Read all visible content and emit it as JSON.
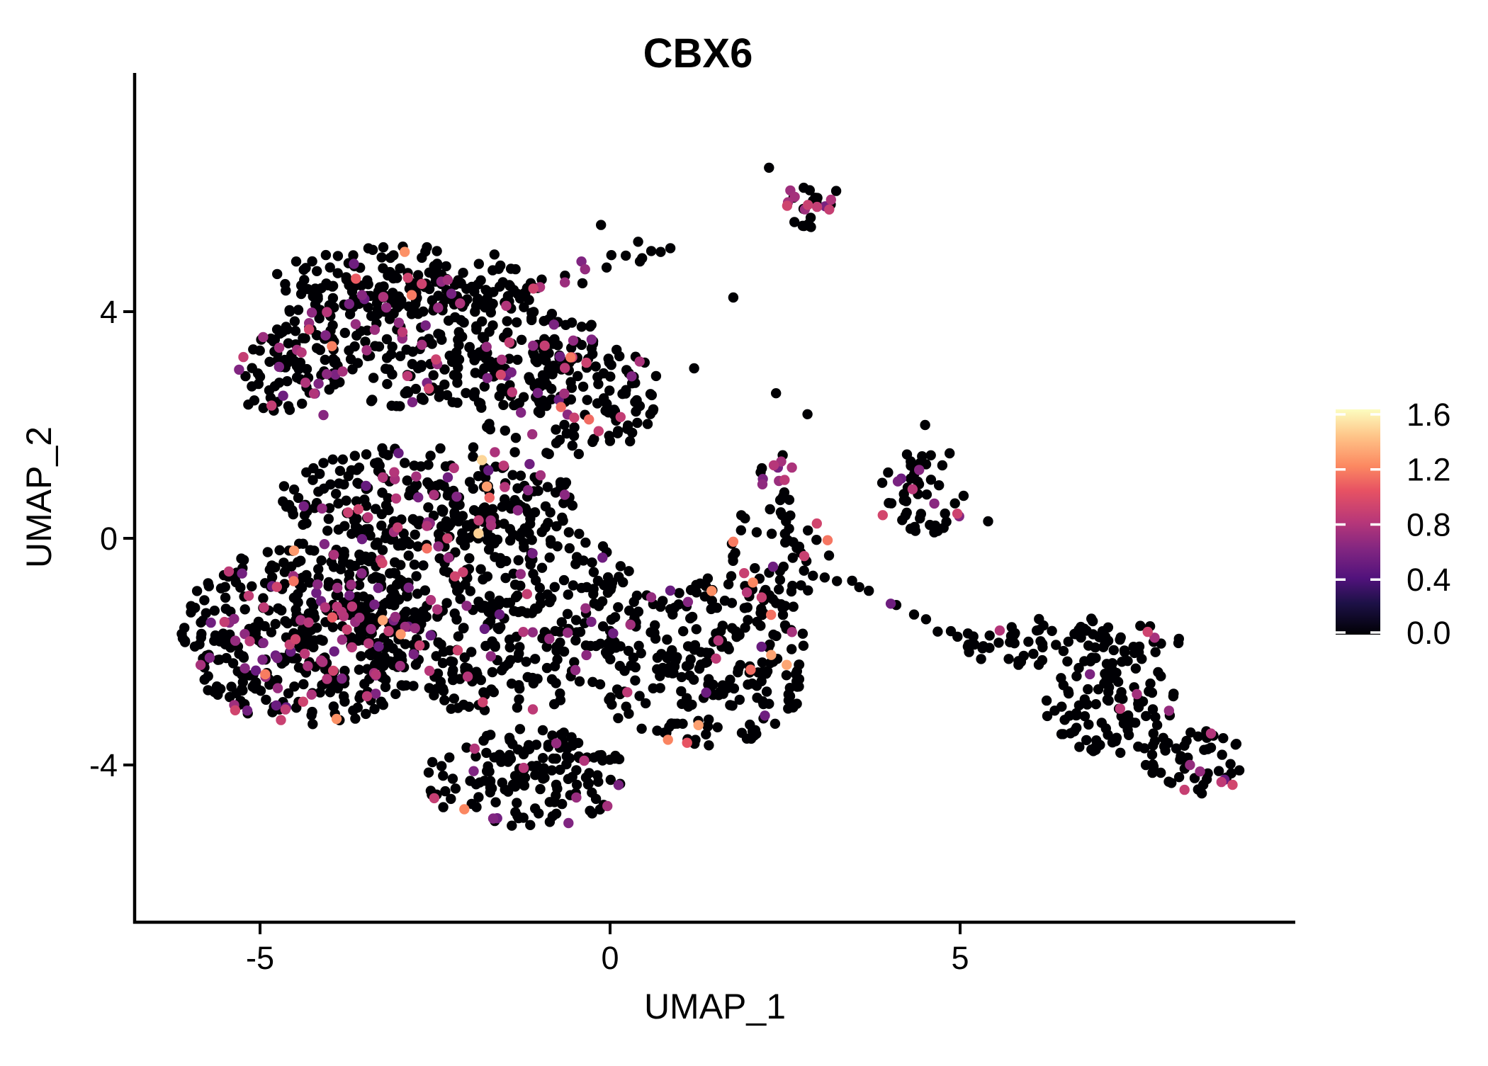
{
  "page": {
    "background": "#ffffff"
  },
  "chart_data": {
    "type": "scatter",
    "title": "CBX6",
    "xlabel": "UMAP_1",
    "ylabel": "UMAP_2",
    "x_ticks": [
      {
        "value": -5,
        "label": "-5"
      },
      {
        "value": 0,
        "label": "0"
      },
      {
        "value": 5,
        "label": "5"
      }
    ],
    "y_ticks": [
      {
        "value": 4,
        "label": "4"
      },
      {
        "value": 0,
        "label": "0"
      },
      {
        "value": -4,
        "label": "-4"
      }
    ],
    "xlim": [
      -6.8,
      9.8
    ],
    "ylim": [
      -6.85,
      8.2
    ],
    "grid": false,
    "point_radius_px": 7.2,
    "seed": 7,
    "legend": {
      "position": "right",
      "vmin": 0.0,
      "vmax": 1.636,
      "tick_values": [
        0.0,
        0.4,
        0.8,
        1.2,
        1.6
      ],
      "tick_labels": [
        "0.0",
        "0.4",
        "0.8",
        "1.2",
        "1.6"
      ]
    },
    "colormap": {
      "name": "magma",
      "stops": [
        [
          0.0,
          "#000004"
        ],
        [
          0.14,
          "#1d1147"
        ],
        [
          0.25,
          "#51127c"
        ],
        [
          0.38,
          "#822681"
        ],
        [
          0.5,
          "#b73779"
        ],
        [
          0.64,
          "#e75263"
        ],
        [
          0.75,
          "#fc8961"
        ],
        [
          0.88,
          "#fec488"
        ],
        [
          1.0,
          "#fcfdbf"
        ]
      ]
    },
    "clusters": [
      {
        "name": "north-lobe-top",
        "cx": -2.9,
        "cy": 4.55,
        "rx": 1.95,
        "ry": 0.6,
        "n": 150,
        "p_mid": 0.1,
        "p_high": 0.01,
        "p_peak": 0
      },
      {
        "name": "north-lobe-core",
        "cx": -2.55,
        "cy": 3.5,
        "rx": 2.35,
        "ry": 1.2,
        "n": 310,
        "p_mid": 0.11,
        "p_high": 0.012,
        "p_peak": 0
      },
      {
        "name": "north-lobe-left-arm",
        "cx": -4.55,
        "cy": 2.9,
        "rx": 0.8,
        "ry": 0.9,
        "n": 60,
        "p_mid": 0.2,
        "p_high": 0.01,
        "p_peak": 0
      },
      {
        "name": "north-lobe-southeast",
        "cx": -0.6,
        "cy": 2.5,
        "rx": 1.35,
        "ry": 1.05,
        "n": 150,
        "p_mid": 0.09,
        "p_high": 0.01,
        "p_peak": 0
      },
      {
        "name": "top-small-cluster",
        "cx": 2.82,
        "cy": 5.9,
        "rx": 0.35,
        "ry": 0.44,
        "n": 26,
        "p_mid": 0.3,
        "p_high": 0,
        "p_peak": 0
      },
      {
        "name": "mid-band",
        "cx": -2.6,
        "cy": 0.75,
        "rx": 2.15,
        "ry": 0.95,
        "n": 235,
        "p_mid": 0.13,
        "p_high": 0.008,
        "p_peak": 0
      },
      {
        "name": "west-dense",
        "cx": -4.35,
        "cy": -1.7,
        "rx": 1.8,
        "ry": 1.62,
        "n": 440,
        "p_mid": 0.17,
        "p_high": 0.012,
        "p_peak": 0
      },
      {
        "name": "central",
        "cx": -1.7,
        "cy": -1.25,
        "rx": 2.15,
        "ry": 1.85,
        "n": 420,
        "p_mid": 0.09,
        "p_high": 0.008,
        "p_peak": 0.002
      },
      {
        "name": "south-tip",
        "cx": -1.2,
        "cy": -4.25,
        "rx": 1.45,
        "ry": 0.9,
        "n": 160,
        "p_mid": 0.07,
        "p_high": 0.006,
        "p_peak": 0
      },
      {
        "name": "southeast-blob",
        "cx": 1.3,
        "cy": -2.2,
        "rx": 1.6,
        "ry": 1.5,
        "n": 250,
        "p_mid": 0.07,
        "p_high": 0.02,
        "p_peak": 0
      },
      {
        "name": "east-spur",
        "cx": 2.4,
        "cy": -0.3,
        "rx": 0.8,
        "ry": 0.95,
        "n": 55,
        "p_mid": 0.06,
        "p_high": 0.03,
        "p_peak": 0
      },
      {
        "name": "small-purple-cluster",
        "cx": 2.42,
        "cy": 1.05,
        "rx": 0.3,
        "ry": 0.45,
        "n": 16,
        "p_mid": 0.38,
        "p_high": 0,
        "p_peak": 0
      },
      {
        "name": "right-mid-cluster",
        "cx": 4.45,
        "cy": 0.75,
        "rx": 0.65,
        "ry": 0.78,
        "n": 50,
        "p_mid": 0.17,
        "p_high": 0,
        "p_peak": 0
      },
      {
        "name": "right-band-top",
        "cx": 6.55,
        "cy": -1.85,
        "rx": 1.6,
        "ry": 0.45,
        "n": 88,
        "p_mid": 0.05,
        "p_high": 0,
        "p_peak": 0
      },
      {
        "name": "right-band-mid",
        "cx": 7.2,
        "cy": -3.0,
        "rx": 0.98,
        "ry": 0.88,
        "n": 92,
        "p_mid": 0.05,
        "p_high": 0,
        "p_peak": 0
      },
      {
        "name": "right-band-tail",
        "cx": 8.35,
        "cy": -3.95,
        "rx": 0.75,
        "ry": 0.58,
        "n": 52,
        "p_mid": 0.08,
        "p_high": 0,
        "p_peak": 0
      }
    ],
    "chains": [
      {
        "name": "northeast-chain",
        "x1": -1.1,
        "y1": 4.4,
        "x2": 1.0,
        "y2": 5.28,
        "n": 16,
        "jitter": 0.18,
        "p_mid": 0.25
      },
      {
        "name": "bridge-to-right",
        "x1": 2.95,
        "y1": -0.55,
        "x2": 5.3,
        "y2": -1.95,
        "n": 13,
        "jitter": 0.15,
        "p_mid": 0.1
      }
    ],
    "singles": [
      {
        "x": -1.83,
        "y": 1.38,
        "value": 1.5
      },
      {
        "x": 1.76,
        "y": -0.06,
        "value": 1.18
      },
      {
        "x": 2.04,
        "y": -0.78,
        "value": 1.22
      },
      {
        "x": 2.3,
        "y": -1.35,
        "value": 1.15
      },
      {
        "x": 1.2,
        "y": 3.0,
        "value": 0
      },
      {
        "x": 1.76,
        "y": 4.25,
        "value": 0
      },
      {
        "x": 2.37,
        "y": 2.56,
        "value": 0
      },
      {
        "x": 2.82,
        "y": 2.19,
        "value": 0
      },
      {
        "x": 4.5,
        "y": 2.0,
        "value": 0
      },
      {
        "x": 4.85,
        "y": 1.5,
        "value": 0
      },
      {
        "x": 5.05,
        "y": 0.75,
        "value": 0
      },
      {
        "x": 5.4,
        "y": 0.3,
        "value": 0
      },
      {
        "x": 2.27,
        "y": 6.54,
        "value": 0
      },
      {
        "x": 3.23,
        "y": 6.13,
        "value": 0
      },
      {
        "x": -0.13,
        "y": 5.53,
        "value": 0
      }
    ],
    "value_ranges": {
      "mid": [
        0.5,
        0.95
      ],
      "high": [
        1.02,
        1.35
      ],
      "peak": [
        1.45,
        1.6
      ]
    }
  }
}
